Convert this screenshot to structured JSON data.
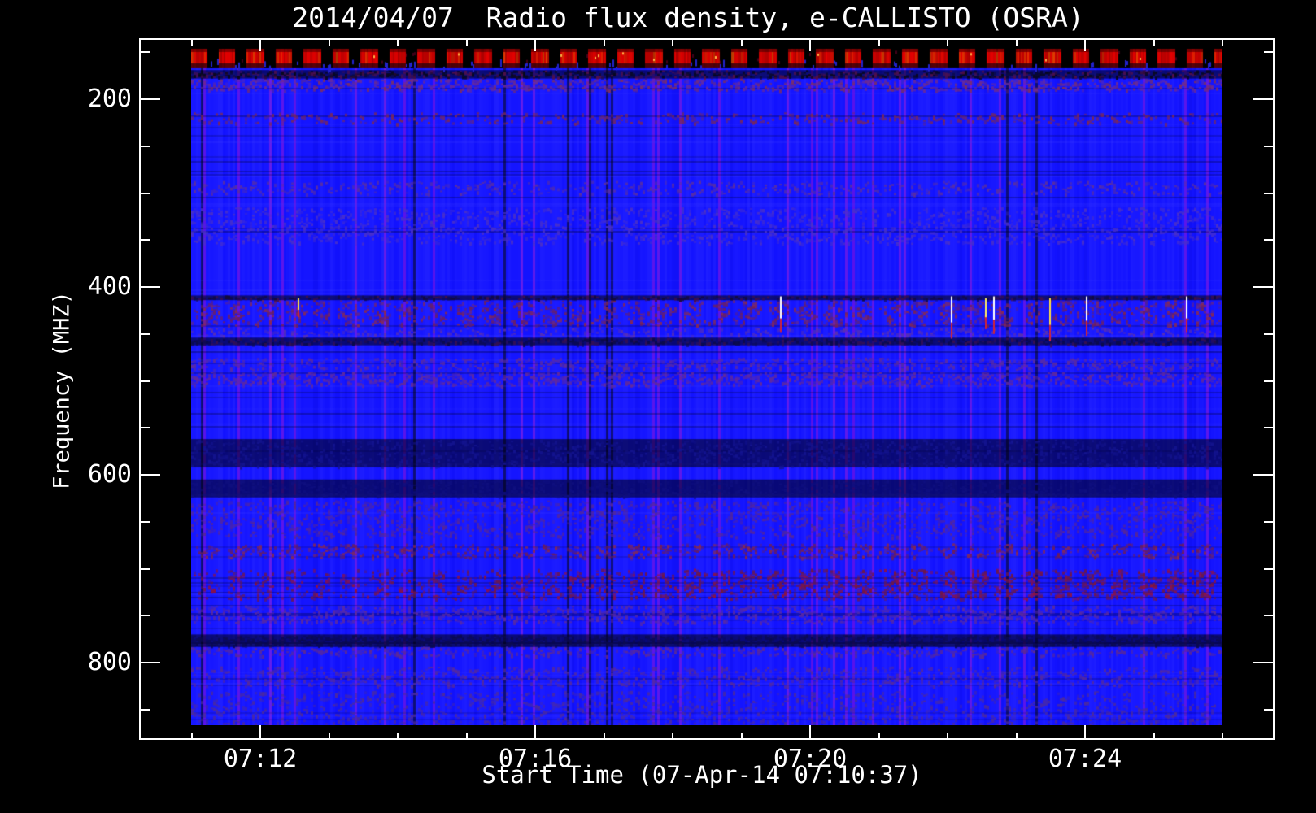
{
  "title": "2014/04/07  Radio flux density, e-CALLISTO (OSRA)",
  "colors": {
    "background": "#000000",
    "frame": "#ffffff",
    "text": "#ffffff",
    "base_level_blue": "#2222ee",
    "calibration_red": "#e00000"
  },
  "x_axis": {
    "label": "Start Time (07-Apr-14 07:10:37)",
    "major_ticks": [
      "07:12",
      "07:16",
      "07:20",
      "07:24"
    ],
    "minor_tick_start": "07:11",
    "minor_tick_end": "07:26",
    "minor_tick_step_min": 1
  },
  "y_axis": {
    "label": "Frequency (MHZ)",
    "major_ticks": [
      "200",
      "400",
      "600",
      "800"
    ],
    "minor_tick_start_mhz": 150,
    "minor_tick_end_mhz": 850,
    "minor_tick_step_mhz": 50
  },
  "chart_data": {
    "type": "heatmap",
    "title": "2014/04/07  Radio flux density, e-CALLISTO (OSRA)",
    "xlabel": "Start Time (07-Apr-14 07:10:37)",
    "ylabel": "Frequency (MHZ)",
    "x_range": [
      "07:10:40",
      "07:26:00"
    ],
    "y_range_mhz": [
      145,
      870
    ],
    "y_axis_inverted": true,
    "grid": false,
    "legend": false,
    "background_level": "quiet-sun radio background rendered as deep blue with fine vertical column noise",
    "calibration": {
      "description": "periodic bright-red calibration pulses at top of band on black gaps",
      "f0_mhz": 146,
      "f1_mhz": 168,
      "period_s": 25,
      "duty_cycle": 0.6,
      "color": "#e00000"
    },
    "bands": [
      {
        "f0": 169,
        "f1": 178,
        "color": "#08081a",
        "color2": "#55104a",
        "density": 0.7,
        "type": "dark"
      },
      {
        "f0": 178,
        "f1": 192,
        "color": "#6a2a9a",
        "color2": "#7f2f5f",
        "density": 0.55
      },
      {
        "f0": 214,
        "f1": 227,
        "color": "#7a2858",
        "density": 0.28
      },
      {
        "f0": 287,
        "f1": 302,
        "color": "#5c2f9f",
        "density": 0.3
      },
      {
        "f0": 315,
        "f1": 355,
        "color": "#4a30c8",
        "density": 0.33
      },
      {
        "f0": 409,
        "f1": 414,
        "color": "#140a36",
        "color2": "#4a1040",
        "density": 0.7,
        "type": "dark"
      },
      {
        "f0": 414,
        "f1": 442,
        "color": "#6e2060",
        "color2": "#8a2a50",
        "density": 0.6,
        "dash": true
      },
      {
        "f0": 443,
        "f1": 453,
        "color": "#5a30b0",
        "density": 0.3
      },
      {
        "f0": 454,
        "f1": 462,
        "color": "#0a0a48",
        "color2": "#3a1050",
        "density": 0.75,
        "type": "dark"
      },
      {
        "f0": 475,
        "f1": 489,
        "color": "#5c2ba0",
        "density": 0.4
      },
      {
        "f0": 490,
        "f1": 506,
        "color": "#642a9a",
        "density": 0.5
      },
      {
        "f0": 562,
        "f1": 592,
        "color": "#141490",
        "density": 0.35,
        "type": "dark"
      },
      {
        "f0": 605,
        "f1": 624,
        "color": "#0f0f80",
        "density": 0.45,
        "type": "dark"
      },
      {
        "f0": 627,
        "f1": 668,
        "color": "#55269a",
        "density": 0.35
      },
      {
        "f0": 673,
        "f1": 689,
        "color": "#6e1e58",
        "color2": "#8a2a50",
        "density": 0.55,
        "dash": true
      },
      {
        "f0": 700,
        "f1": 733,
        "color": "#701846",
        "color2": "#92123e",
        "density": 0.6,
        "dash": true,
        "right_boost": true
      },
      {
        "f0": 739,
        "f1": 759,
        "color": "#5a2aa2",
        "density": 0.45
      },
      {
        "f0": 770,
        "f1": 783,
        "color": "#0b0b50",
        "density": 0.7,
        "type": "dark"
      },
      {
        "f0": 783,
        "f1": 794,
        "color": "#5e2a92",
        "density": 0.4
      },
      {
        "f0": 804,
        "f1": 826,
        "color": "#562a9c",
        "density": 0.35
      },
      {
        "f0": 830,
        "f1": 867,
        "color": "#4c2a9e",
        "density": 0.3
      }
    ],
    "streaks": [
      {
        "time": "07:12:33",
        "f0": 412,
        "f1": 432,
        "color": "#ffdd44"
      },
      {
        "time": "07:19:34",
        "f0": 410,
        "f1": 448,
        "color": "#ffffff"
      },
      {
        "time": "07:22:03",
        "f0": 410,
        "f1": 455,
        "color": "#ffffff"
      },
      {
        "time": "07:22:33",
        "f0": 412,
        "f1": 445,
        "color": "#ffee66"
      },
      {
        "time": "07:22:40",
        "f0": 410,
        "f1": 450,
        "color": "#ffffff"
      },
      {
        "time": "07:23:29",
        "f0": 412,
        "f1": 458,
        "color": "#ffdd44"
      },
      {
        "time": "07:24:01",
        "f0": 410,
        "f1": 452,
        "color": "#ffffff"
      },
      {
        "time": "07:25:28",
        "f0": 410,
        "f1": 448,
        "color": "#ffffff"
      }
    ]
  }
}
